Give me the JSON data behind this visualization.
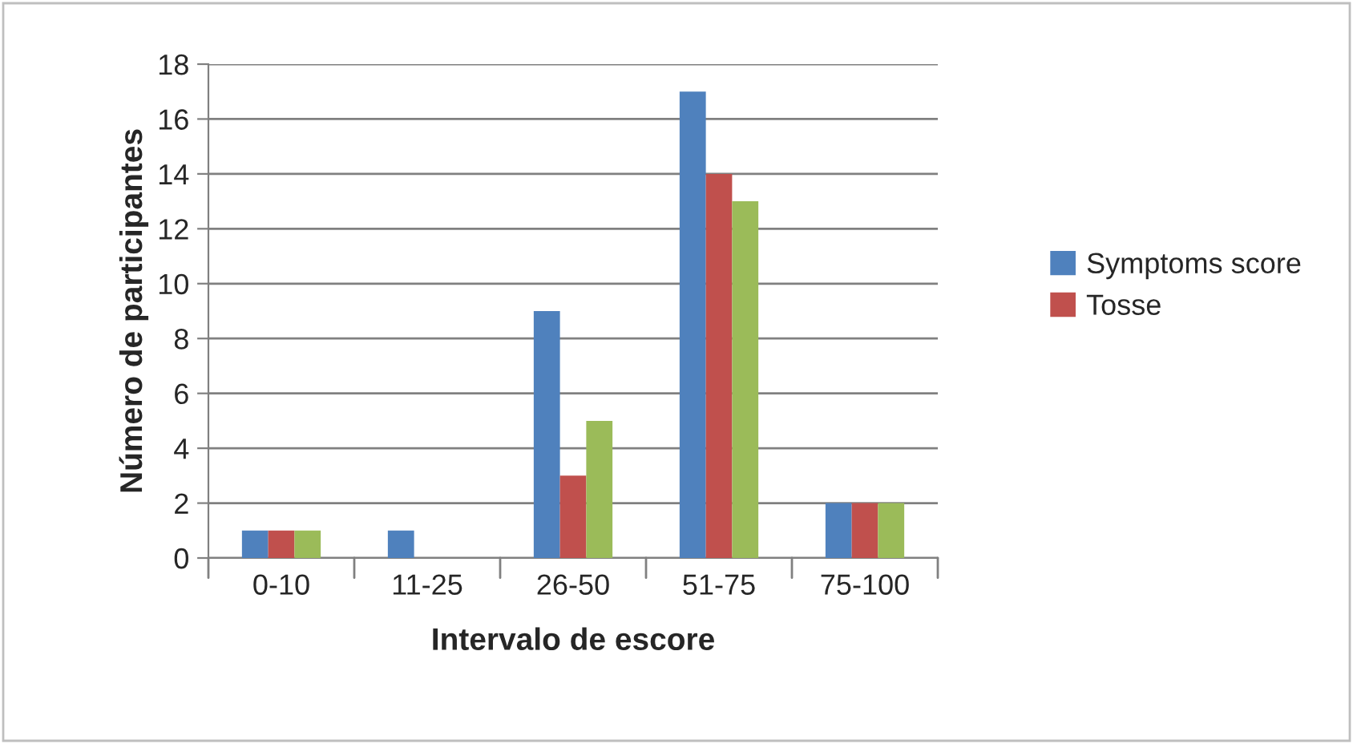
{
  "chart_data": {
    "type": "bar",
    "xlabel": "Intervalo de escore",
    "ylabel": "Número de participantes",
    "categories": [
      "0-10",
      "11-25",
      "26-50",
      "51-75",
      "75-100"
    ],
    "series": [
      {
        "name": "Symptoms score",
        "color": "#4f81bd",
        "values": [
          1,
          1,
          9,
          17,
          2
        ]
      },
      {
        "name": "Tosse",
        "color": "#c0504d",
        "values": [
          1,
          null,
          3,
          14,
          2
        ]
      },
      {
        "color": "#9bbb59",
        "values": [
          1,
          null,
          5,
          13,
          2
        ]
      }
    ],
    "ylim": [
      0,
      18
    ],
    "yticks": [
      0,
      2,
      4,
      6,
      8,
      10,
      12,
      14,
      16,
      18
    ],
    "grid": "y",
    "legend": "right"
  }
}
